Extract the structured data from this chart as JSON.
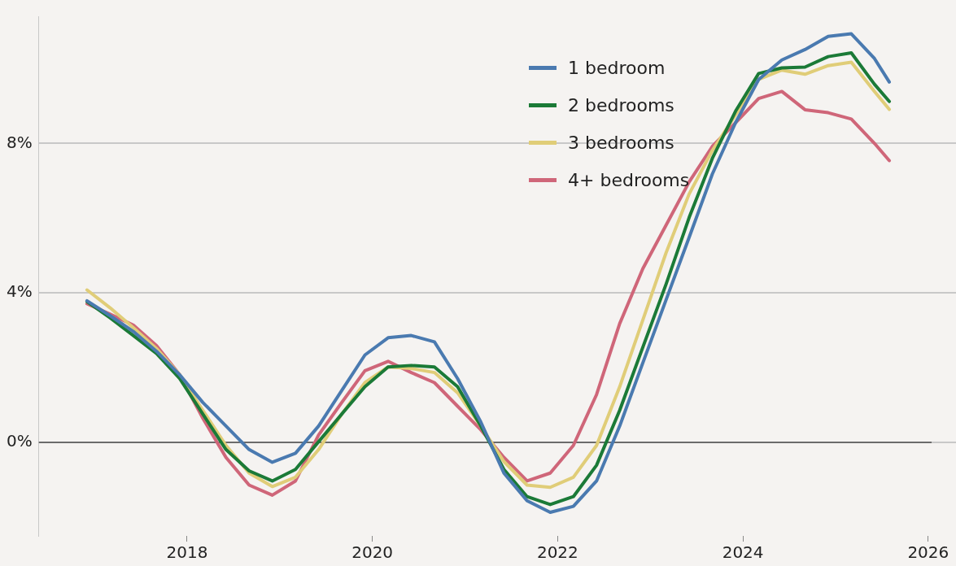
{
  "chart_data": {
    "type": "line",
    "x": [
      2016.92,
      2017.17,
      2017.42,
      2017.67,
      2017.92,
      2018.17,
      2018.42,
      2018.67,
      2018.92,
      2019.17,
      2019.42,
      2019.67,
      2019.92,
      2020.17,
      2020.42,
      2020.67,
      2020.92,
      2021.17,
      2021.42,
      2021.67,
      2021.92,
      2022.17,
      2022.42,
      2022.67,
      2022.92,
      2023.17,
      2023.42,
      2023.67,
      2023.92,
      2024.17,
      2024.42,
      2024.67,
      2024.92,
      2025.17,
      2025.42,
      2025.58
    ],
    "series": [
      {
        "name": "1 bedroom",
        "color": "#4a7ab0",
        "values": [
          3.79,
          3.39,
          2.97,
          2.44,
          1.81,
          1.07,
          0.44,
          -0.19,
          -0.53,
          -0.29,
          0.44,
          1.39,
          2.34,
          2.8,
          2.86,
          2.69,
          1.71,
          0.55,
          -0.82,
          -1.56,
          -1.87,
          -1.71,
          -1.03,
          0.44,
          2.13,
          3.81,
          5.49,
          7.18,
          8.55,
          9.71,
          10.23,
          10.51,
          10.86,
          10.93,
          10.27,
          9.64
        ]
      },
      {
        "name": "2 bedrooms",
        "color": "#1b7a37",
        "values": [
          3.77,
          3.33,
          2.86,
          2.38,
          1.71,
          0.76,
          -0.19,
          -0.76,
          -1.03,
          -0.72,
          0.02,
          0.76,
          1.49,
          2.02,
          2.06,
          2.02,
          1.49,
          0.44,
          -0.72,
          -1.45,
          -1.66,
          -1.45,
          -0.61,
          0.86,
          2.55,
          4.23,
          6.02,
          7.6,
          8.86,
          9.87,
          10.02,
          10.04,
          10.32,
          10.42,
          9.58,
          9.12
        ]
      },
      {
        "name": "3 bedrooms",
        "color": "#e0cd78",
        "values": [
          4.08,
          3.6,
          3.07,
          2.51,
          1.81,
          0.86,
          -0.08,
          -0.82,
          -1.18,
          -0.93,
          -0.19,
          0.76,
          1.6,
          2.02,
          1.98,
          1.87,
          1.33,
          0.44,
          -0.51,
          -1.14,
          -1.2,
          -0.93,
          -0.08,
          1.49,
          3.28,
          5.07,
          6.65,
          7.81,
          8.76,
          9.71,
          9.96,
          9.85,
          10.08,
          10.17,
          9.39,
          8.91
        ]
      },
      {
        "name": "4+ bedrooms",
        "color": "#cf6679",
        "values": [
          3.71,
          3.43,
          3.14,
          2.59,
          1.81,
          0.65,
          -0.4,
          -1.14,
          -1.41,
          -1.03,
          0.2,
          1.07,
          1.92,
          2.17,
          1.87,
          1.6,
          0.97,
          0.34,
          -0.4,
          -1.03,
          -0.82,
          -0.08,
          1.28,
          3.18,
          4.65,
          5.81,
          6.97,
          7.92,
          8.55,
          9.2,
          9.39,
          8.9,
          8.82,
          8.65,
          8.0,
          7.54
        ]
      }
    ],
    "xlim": [
      2016.4,
      2026.3
    ],
    "xticks": [
      2018,
      2020,
      2022,
      2024,
      2026
    ],
    "ylim": [
      -2.5,
      11.4
    ],
    "yticks": [
      {
        "value": 0,
        "label": "0%"
      },
      {
        "value": 4,
        "label": "4%"
      },
      {
        "value": 8,
        "label": "8%"
      }
    ],
    "ref_lines": [
      {
        "axis": "y",
        "value": 0,
        "label": null,
        "color": "#6b6b6b"
      }
    ],
    "grid": "y",
    "legend": "top right",
    "marker": "none",
    "line_style": "solid"
  }
}
